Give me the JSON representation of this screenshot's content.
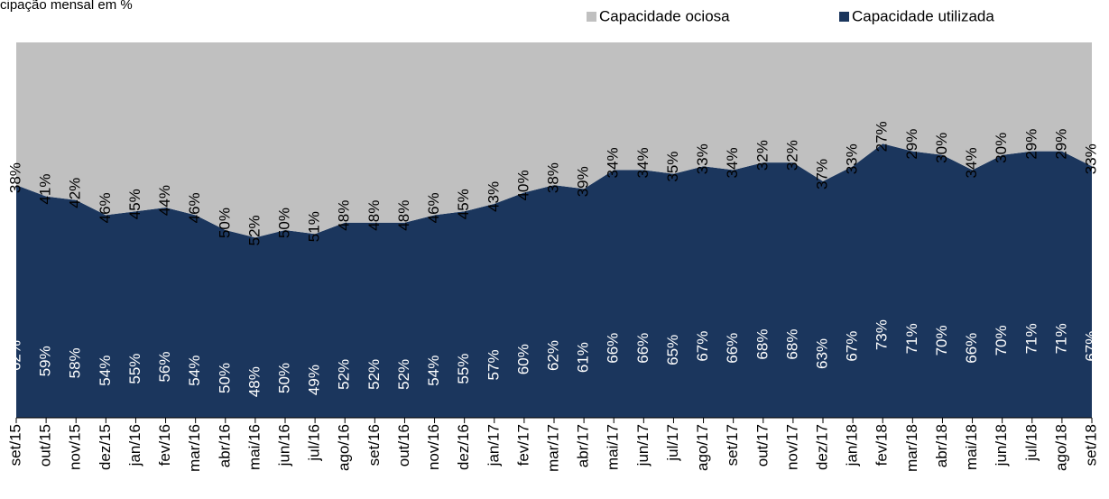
{
  "chart_data": {
    "type": "stacked-area",
    "title": "cipação mensal em %",
    "categories": [
      "set/15",
      "out/15",
      "nov/15",
      "dez/15",
      "jan/16",
      "fev/16",
      "mar/16",
      "abr/16",
      "mai/16",
      "jun/16",
      "jul/16",
      "ago/16",
      "set/16",
      "out/16",
      "nov/16",
      "dez/16",
      "jan/17",
      "fev/17",
      "mar/17",
      "abr/17",
      "mai/17",
      "jun/17",
      "jul/17",
      "ago/17",
      "set/17",
      "out/17",
      "nov/17",
      "dez/17",
      "jan/18",
      "fev/18",
      "mar/18",
      "abr/18",
      "mai/18",
      "jun/18",
      "jul/18",
      "ago/18",
      "set/18"
    ],
    "series": [
      {
        "name": "Capacidade utilizada",
        "color": "#1b365d",
        "values": [
          62,
          59,
          58,
          54,
          55,
          56,
          54,
          50,
          48,
          50,
          49,
          52,
          52,
          52,
          54,
          55,
          57,
          60,
          62,
          61,
          66,
          66,
          65,
          67,
          66,
          68,
          68,
          63,
          67,
          73,
          71,
          70,
          66,
          70,
          71,
          71,
          67
        ],
        "value_labels": [
          "62%",
          "59%",
          "58%",
          "54%",
          "55%",
          "56%",
          "54%",
          "50%",
          "48%",
          "50%",
          "49%",
          "52%",
          "52%",
          "52%",
          "54%",
          "55%",
          "57%",
          "60%",
          "62%",
          "61%",
          "66%",
          "66%",
          "65%",
          "67%",
          "66%",
          "68%",
          "68%",
          "63%",
          "67%",
          "73%",
          "71%",
          "70%",
          "66%",
          "70%",
          "71%",
          "71%",
          "67%"
        ]
      },
      {
        "name": "Capacidade ociosa",
        "color": "#c0c0c0",
        "values": [
          38,
          41,
          42,
          46,
          45,
          44,
          46,
          50,
          52,
          50,
          51,
          48,
          48,
          48,
          46,
          45,
          43,
          40,
          38,
          39,
          34,
          34,
          35,
          33,
          34,
          32,
          32,
          37,
          33,
          27,
          29,
          30,
          34,
          30,
          29,
          29,
          33
        ],
        "value_labels": [
          "38%",
          "41%",
          "42%",
          "46%",
          "45%",
          "44%",
          "46%",
          "50%",
          "52%",
          "50%",
          "51%",
          "48%",
          "48%",
          "48%",
          "46%",
          "45%",
          "43%",
          "40%",
          "38%",
          "39%",
          "34%",
          "34%",
          "35%",
          "33%",
          "34%",
          "32%",
          "32%",
          "37%",
          "33%",
          "27%",
          "29%",
          "30%",
          "34%",
          "30%",
          "29%",
          "29%",
          "33%"
        ]
      }
    ]
  }
}
